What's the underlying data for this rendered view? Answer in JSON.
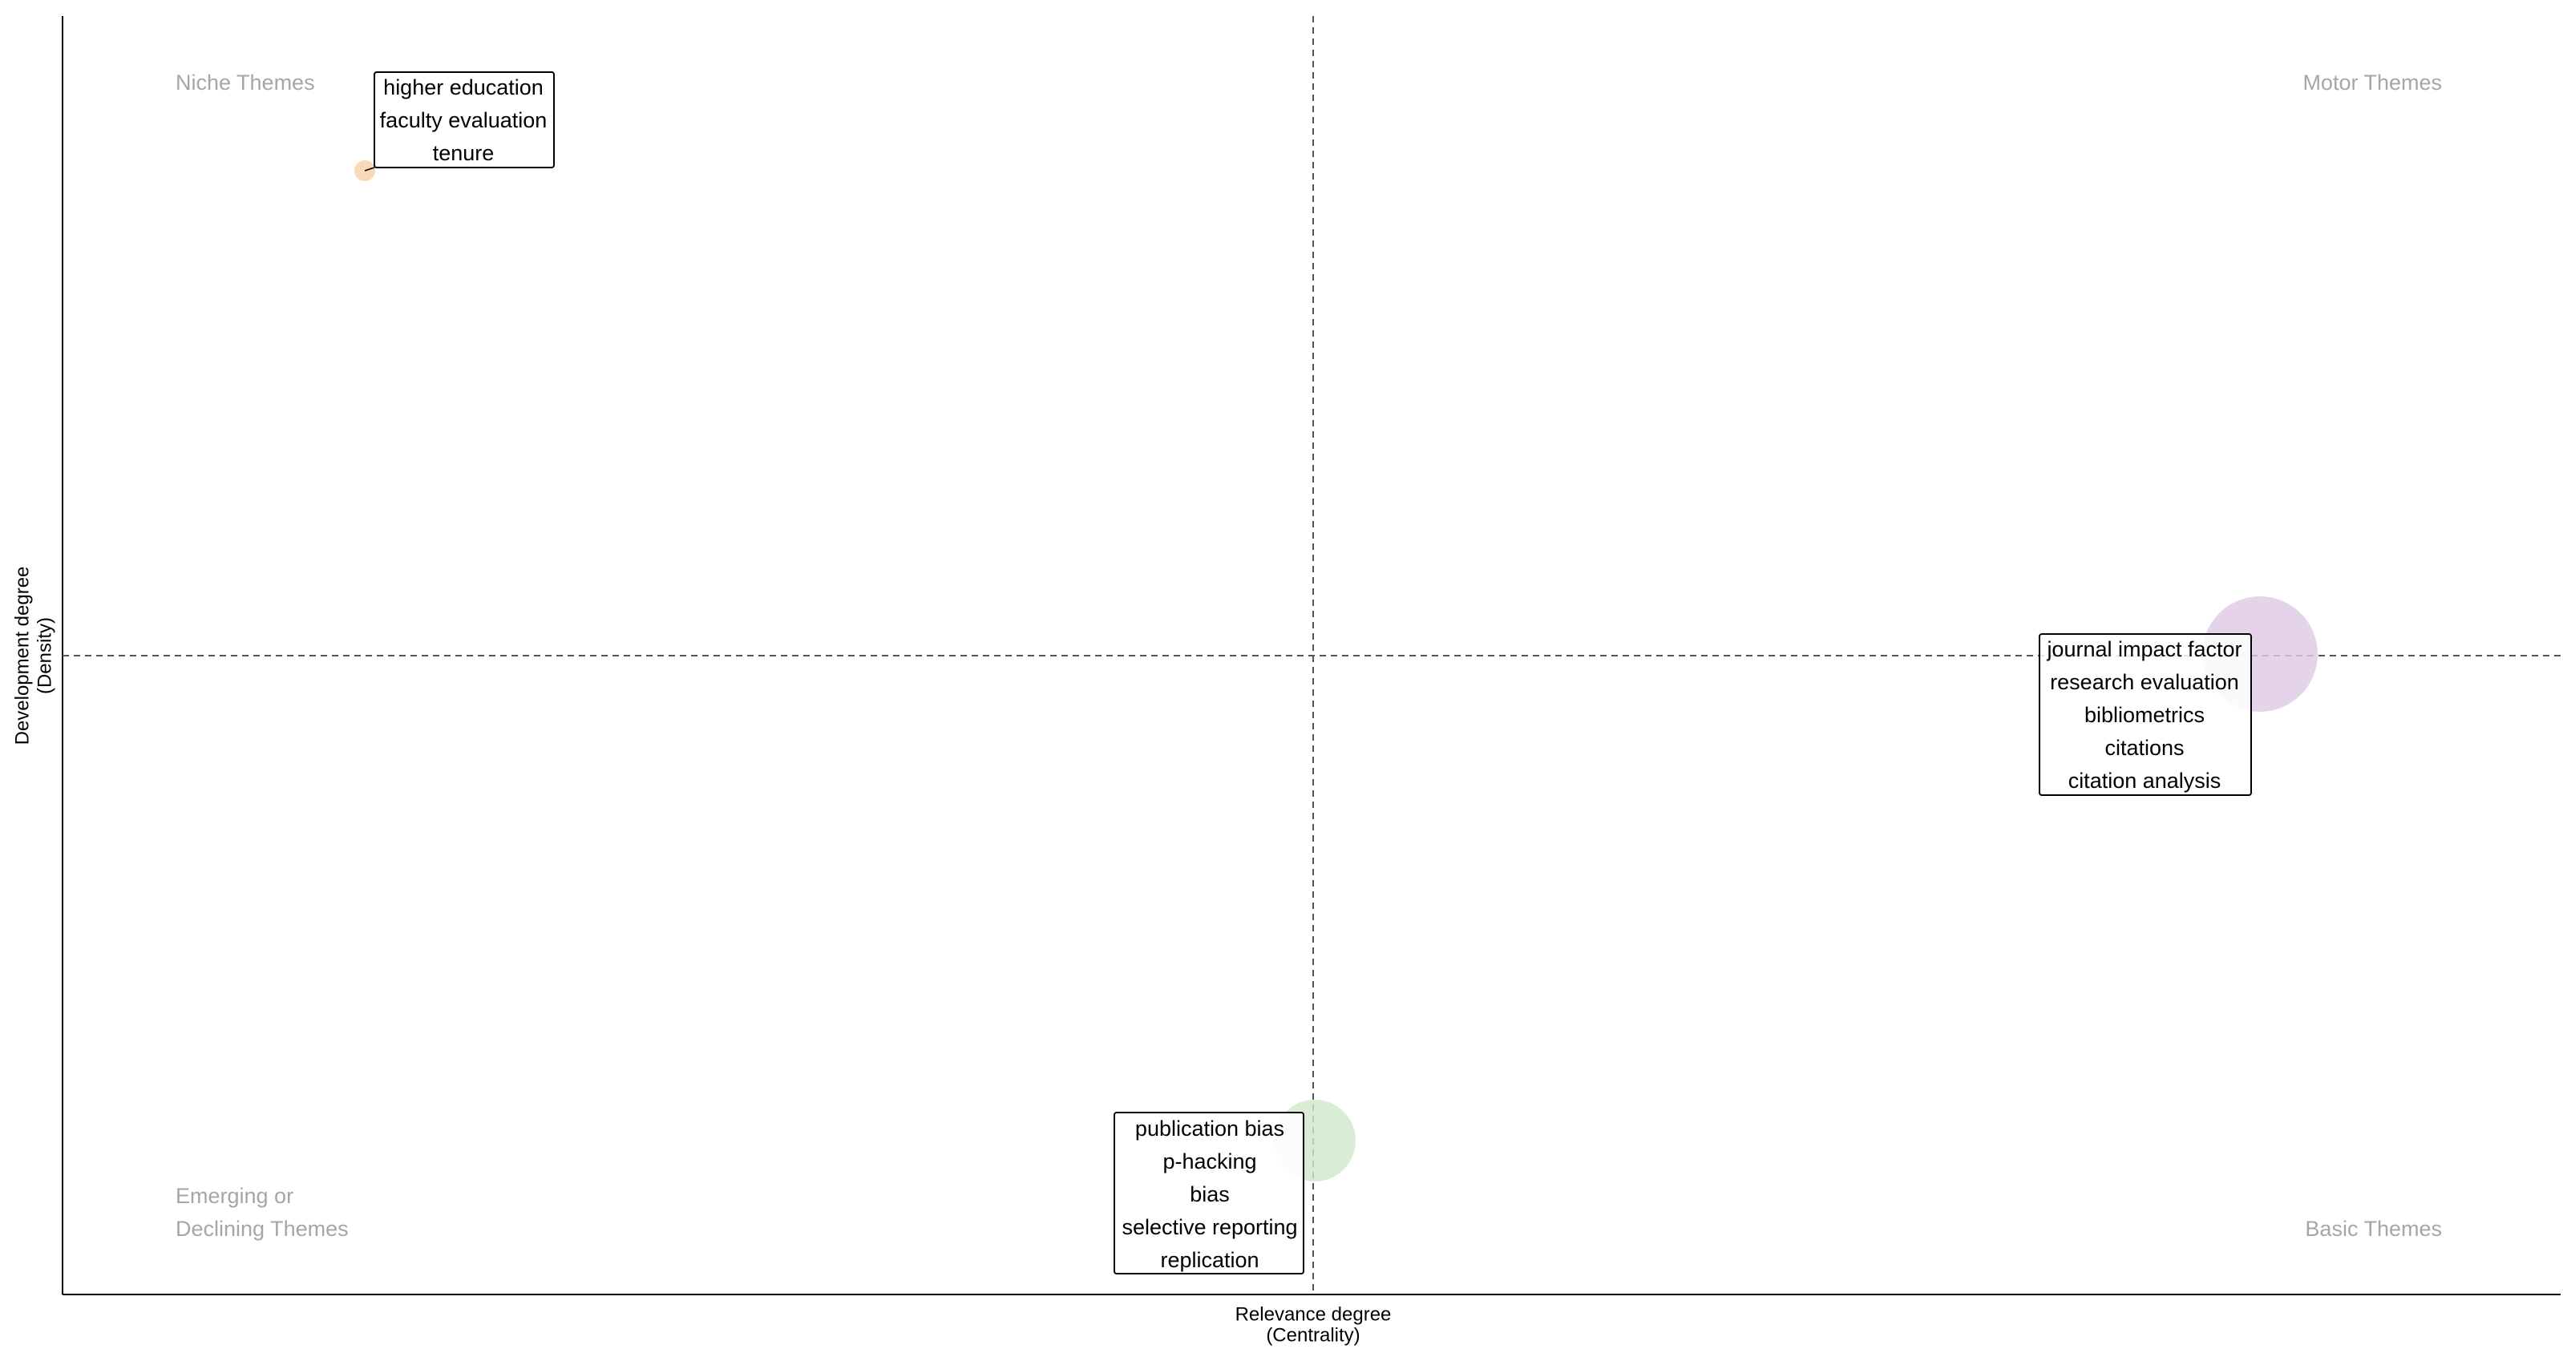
{
  "axes": {
    "x_label": [
      "Relevance degree",
      "(Centrality)"
    ],
    "y_label": [
      "Development degree",
      "(Density)"
    ]
  },
  "quadrants": {
    "top_left": [
      "Niche Themes"
    ],
    "top_right": [
      "Motor Themes"
    ],
    "bottom_left": [
      "Emerging or",
      "Declining Themes"
    ],
    "bottom_right": [
      "Basic Themes"
    ]
  },
  "clusters": [
    {
      "color": "#f7cfa6",
      "labels": [
        "higher education",
        "faculty evaluation",
        "tenure"
      ]
    },
    {
      "color": "#dfc8e3",
      "labels": [
        "journal impact factor",
        "research evaluation",
        "bibliometrics",
        "citations",
        "citation analysis"
      ]
    },
    {
      "color": "#cfe9c9",
      "labels": [
        "publication bias",
        "p-hacking",
        "bias",
        "selective reporting",
        "replication"
      ]
    }
  ]
}
